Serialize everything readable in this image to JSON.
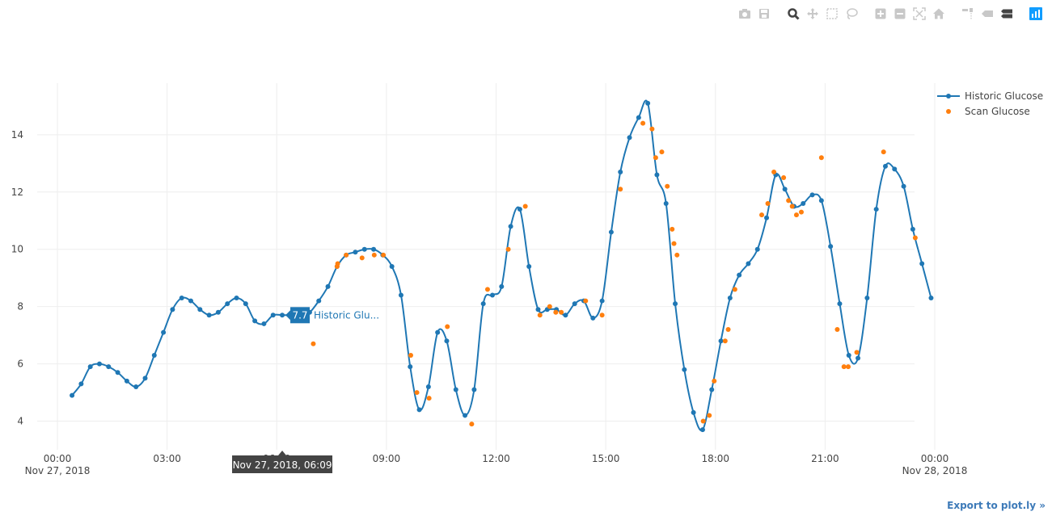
{
  "modebar": {
    "buttons": [
      {
        "name": "camera-icon",
        "active": false
      },
      {
        "name": "save-icon",
        "active": false
      },
      {
        "name": "zoom-icon",
        "active": true
      },
      {
        "name": "pan-icon",
        "active": false
      },
      {
        "name": "box-select-icon",
        "active": false
      },
      {
        "name": "lasso-icon",
        "active": false
      },
      {
        "name": "zoom-in-icon",
        "active": false
      },
      {
        "name": "zoom-out-icon",
        "active": false
      },
      {
        "name": "autoscale-icon",
        "active": false
      },
      {
        "name": "home-icon",
        "active": false
      },
      {
        "name": "spike-lines-icon",
        "active": false
      },
      {
        "name": "hover-closest-icon",
        "active": false
      },
      {
        "name": "hover-compare-icon",
        "active": false
      },
      {
        "name": "plotly-logo-icon",
        "active": false
      }
    ]
  },
  "export_link": "Export to plot.ly »",
  "colors": {
    "historic": "#1f77b4",
    "scan": "#ff7f0e",
    "grid": "#eeeeee",
    "tooltip_bg": "#444444"
  },
  "hover": {
    "x_label": "Nov 27, 2018, 06:09",
    "value": "7.7",
    "series_label": "Historic Glu...",
    "x": "06:09",
    "y": 7.7
  },
  "chart_data": {
    "type": "scatter",
    "xlim": [
      "00:00",
      "24:00"
    ],
    "ylim": [
      3.0,
      15.8
    ],
    "grid": true,
    "legend_placement": "top-right",
    "x_ticks": [
      {
        "t": "00:00",
        "label": "00:00",
        "sub": "Nov 27, 2018"
      },
      {
        "t": "03:00",
        "label": "03:00",
        "sub": ""
      },
      {
        "t": "06:00",
        "label": "06:00",
        "sub": ""
      },
      {
        "t": "09:00",
        "label": "09:00",
        "sub": ""
      },
      {
        "t": "12:00",
        "label": "12:00",
        "sub": ""
      },
      {
        "t": "15:00",
        "label": "15:00",
        "sub": ""
      },
      {
        "t": "18:00",
        "label": "18:00",
        "sub": ""
      },
      {
        "t": "21:00",
        "label": "21:00",
        "sub": ""
      },
      {
        "t": "24:00",
        "label": "00:00",
        "sub": "Nov 28, 2018"
      }
    ],
    "y_ticks": [
      4,
      6,
      8,
      10,
      12,
      14
    ],
    "series": [
      {
        "name": "Historic Glucose",
        "mode": "lines+markers",
        "points": [
          [
            "00:24",
            4.9
          ],
          [
            "00:39",
            5.3
          ],
          [
            "00:54",
            5.9
          ],
          [
            "01:09",
            6.0
          ],
          [
            "01:24",
            5.9
          ],
          [
            "01:39",
            5.7
          ],
          [
            "01:54",
            5.4
          ],
          [
            "02:09",
            5.2
          ],
          [
            "02:24",
            5.5
          ],
          [
            "02:39",
            6.3
          ],
          [
            "02:54",
            7.1
          ],
          [
            "03:09",
            7.9
          ],
          [
            "03:24",
            8.3
          ],
          [
            "03:39",
            8.2
          ],
          [
            "03:54",
            7.9
          ],
          [
            "04:09",
            7.7
          ],
          [
            "04:24",
            7.8
          ],
          [
            "04:39",
            8.1
          ],
          [
            "04:54",
            8.3
          ],
          [
            "05:09",
            8.1
          ],
          [
            "05:24",
            7.5
          ],
          [
            "05:39",
            7.4
          ],
          [
            "05:54",
            7.7
          ],
          [
            "06:09",
            7.7
          ],
          [
            "06:24",
            7.7
          ],
          [
            "06:39",
            7.7
          ],
          [
            "06:54",
            7.8
          ],
          [
            "07:09",
            8.2
          ],
          [
            "07:24",
            8.7
          ],
          [
            "07:39",
            9.4
          ],
          [
            "07:54",
            9.8
          ],
          [
            "08:09",
            9.9
          ],
          [
            "08:24",
            10.0
          ],
          [
            "08:39",
            10.0
          ],
          [
            "08:54",
            9.8
          ],
          [
            "09:09",
            9.4
          ],
          [
            "09:24",
            8.4
          ],
          [
            "09:39",
            5.9
          ],
          [
            "09:54",
            4.4
          ],
          [
            "10:09",
            5.2
          ],
          [
            "10:24",
            7.1
          ],
          [
            "10:39",
            6.8
          ],
          [
            "10:54",
            5.1
          ],
          [
            "11:09",
            4.2
          ],
          [
            "11:24",
            5.1
          ],
          [
            "11:39",
            8.1
          ],
          [
            "11:54",
            8.4
          ],
          [
            "12:09",
            8.7
          ],
          [
            "12:24",
            10.8
          ],
          [
            "12:39",
            11.4
          ],
          [
            "12:54",
            9.4
          ],
          [
            "13:09",
            7.9
          ],
          [
            "13:24",
            7.9
          ],
          [
            "13:39",
            7.9
          ],
          [
            "13:54",
            7.7
          ],
          [
            "14:09",
            8.1
          ],
          [
            "14:24",
            8.2
          ],
          [
            "14:39",
            7.6
          ],
          [
            "14:54",
            8.2
          ],
          [
            "15:09",
            10.6
          ],
          [
            "15:24",
            12.7
          ],
          [
            "15:39",
            13.9
          ],
          [
            "15:54",
            14.6
          ],
          [
            "16:09",
            15.1
          ],
          [
            "16:24",
            12.6
          ],
          [
            "16:39",
            11.6
          ],
          [
            "16:54",
            8.1
          ],
          [
            "17:09",
            5.8
          ],
          [
            "17:24",
            4.3
          ],
          [
            "17:39",
            3.7
          ],
          [
            "17:54",
            5.1
          ],
          [
            "18:09",
            6.8
          ],
          [
            "18:24",
            8.3
          ],
          [
            "18:39",
            9.1
          ],
          [
            "18:54",
            9.5
          ],
          [
            "19:09",
            10.0
          ],
          [
            "19:24",
            11.1
          ],
          [
            "19:39",
            12.6
          ],
          [
            "19:54",
            12.1
          ],
          [
            "20:09",
            11.5
          ],
          [
            "20:24",
            11.6
          ],
          [
            "20:39",
            11.9
          ],
          [
            "20:54",
            11.7
          ],
          [
            "21:09",
            10.1
          ],
          [
            "21:24",
            8.1
          ],
          [
            "21:39",
            6.3
          ],
          [
            "21:54",
            6.2
          ],
          [
            "22:09",
            8.3
          ],
          [
            "22:24",
            11.4
          ],
          [
            "22:39",
            12.9
          ],
          [
            "22:54",
            12.8
          ],
          [
            "23:09",
            12.2
          ],
          [
            "23:24",
            10.7
          ],
          [
            "23:39",
            9.5
          ],
          [
            "23:54",
            8.3
          ]
        ]
      },
      {
        "name": "Scan Glucose",
        "mode": "markers",
        "points": [
          [
            "07:00",
            6.7
          ],
          [
            "07:39",
            9.4
          ],
          [
            "07:40",
            9.5
          ],
          [
            "07:54",
            9.8
          ],
          [
            "08:20",
            9.7
          ],
          [
            "08:40",
            9.8
          ],
          [
            "08:55",
            9.8
          ],
          [
            "09:40",
            6.3
          ],
          [
            "09:50",
            5.0
          ],
          [
            "10:10",
            4.8
          ],
          [
            "10:40",
            7.3
          ],
          [
            "11:20",
            3.9
          ],
          [
            "11:46",
            8.6
          ],
          [
            "12:20",
            10.0
          ],
          [
            "12:48",
            11.5
          ],
          [
            "13:12",
            7.7
          ],
          [
            "13:28",
            8.0
          ],
          [
            "13:38",
            7.8
          ],
          [
            "13:47",
            7.8
          ],
          [
            "14:27",
            8.2
          ],
          [
            "14:54",
            7.7
          ],
          [
            "15:24",
            12.1
          ],
          [
            "16:01",
            14.4
          ],
          [
            "16:16",
            14.2
          ],
          [
            "16:22",
            13.2
          ],
          [
            "16:32",
            13.4
          ],
          [
            "16:41",
            12.2
          ],
          [
            "16:49",
            10.7
          ],
          [
            "16:52",
            10.2
          ],
          [
            "16:57",
            9.8
          ],
          [
            "17:40",
            4.0
          ],
          [
            "17:50",
            4.2
          ],
          [
            "17:58",
            5.4
          ],
          [
            "18:16",
            6.8
          ],
          [
            "18:21",
            7.2
          ],
          [
            "18:32",
            8.6
          ],
          [
            "19:16",
            11.2
          ],
          [
            "19:26",
            11.6
          ],
          [
            "19:36",
            12.7
          ],
          [
            "19:52",
            12.5
          ],
          [
            "20:00",
            11.7
          ],
          [
            "20:06",
            11.5
          ],
          [
            "20:13",
            11.2
          ],
          [
            "20:21",
            11.3
          ],
          [
            "20:54",
            13.2
          ],
          [
            "21:20",
            7.2
          ],
          [
            "21:31",
            5.9
          ],
          [
            "21:38",
            5.9
          ],
          [
            "21:52",
            6.4
          ],
          [
            "22:36",
            13.4
          ],
          [
            "23:28",
            10.4
          ]
        ]
      }
    ]
  }
}
